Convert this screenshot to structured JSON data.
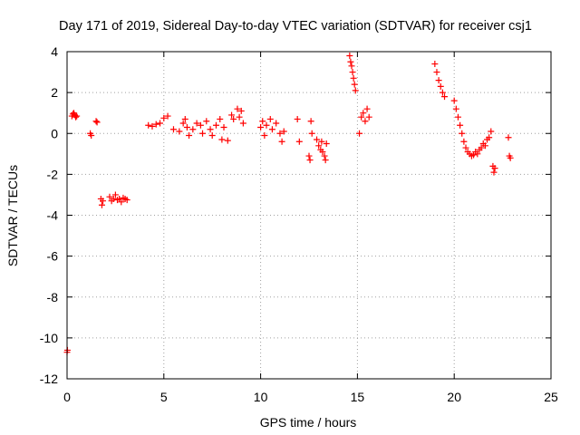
{
  "chart_data": {
    "type": "scatter",
    "title": "Day 171 of 2019, Sidereal Day-to-day VTEC variation (SDTVAR) for receiver csj1",
    "xlabel": "GPS time / hours",
    "ylabel": "SDTVAR / TECUs",
    "xlim": [
      0,
      25
    ],
    "ylim": [
      -12,
      4
    ],
    "xticks": [
      0,
      5,
      10,
      15,
      20,
      25
    ],
    "yticks": [
      4,
      2,
      0,
      -2,
      -4,
      -6,
      -8,
      -10,
      -12
    ],
    "grid": true,
    "marker": "+",
    "color": "#ff0000",
    "series": [
      {
        "name": "SDTVAR",
        "points": [
          [
            0.0,
            -10.7
          ],
          [
            0.02,
            -10.6
          ],
          [
            0.25,
            0.85
          ],
          [
            0.3,
            0.95
          ],
          [
            0.35,
            1.0
          ],
          [
            0.4,
            0.9
          ],
          [
            0.45,
            0.8
          ],
          [
            0.5,
            0.85
          ],
          [
            1.2,
            0.0
          ],
          [
            1.25,
            -0.1
          ],
          [
            1.5,
            0.6
          ],
          [
            1.55,
            0.55
          ],
          [
            1.75,
            -3.2
          ],
          [
            1.8,
            -3.5
          ],
          [
            1.85,
            -3.3
          ],
          [
            2.2,
            -3.1
          ],
          [
            2.3,
            -3.3
          ],
          [
            2.4,
            -3.2
          ],
          [
            2.5,
            -3.0
          ],
          [
            2.6,
            -3.25
          ],
          [
            2.7,
            -3.2
          ],
          [
            2.8,
            -3.35
          ],
          [
            2.9,
            -3.15
          ],
          [
            3.0,
            -3.2
          ],
          [
            3.1,
            -3.25
          ],
          [
            4.2,
            0.4
          ],
          [
            4.4,
            0.35
          ],
          [
            4.6,
            0.45
          ],
          [
            4.8,
            0.5
          ],
          [
            5.0,
            0.75
          ],
          [
            5.2,
            0.85
          ],
          [
            5.5,
            0.2
          ],
          [
            5.8,
            0.1
          ],
          [
            6.0,
            0.5
          ],
          [
            6.1,
            0.7
          ],
          [
            6.2,
            0.3
          ],
          [
            6.3,
            -0.1
          ],
          [
            6.5,
            0.2
          ],
          [
            6.7,
            0.5
          ],
          [
            6.9,
            0.4
          ],
          [
            7.0,
            0.0
          ],
          [
            7.2,
            0.6
          ],
          [
            7.4,
            0.2
          ],
          [
            7.5,
            -0.1
          ],
          [
            7.7,
            0.4
          ],
          [
            7.9,
            0.7
          ],
          [
            8.0,
            -0.3
          ],
          [
            8.1,
            0.3
          ],
          [
            8.3,
            -0.35
          ],
          [
            8.5,
            0.9
          ],
          [
            8.6,
            0.7
          ],
          [
            8.8,
            1.2
          ],
          [
            8.9,
            0.8
          ],
          [
            9.0,
            1.1
          ],
          [
            9.1,
            0.5
          ],
          [
            10.0,
            0.3
          ],
          [
            10.1,
            0.6
          ],
          [
            10.2,
            -0.1
          ],
          [
            10.3,
            0.4
          ],
          [
            10.5,
            0.7
          ],
          [
            10.6,
            0.2
          ],
          [
            10.8,
            0.5
          ],
          [
            11.0,
            0.0
          ],
          [
            11.1,
            -0.4
          ],
          [
            11.2,
            0.1
          ],
          [
            11.9,
            0.7
          ],
          [
            12.0,
            -0.4
          ],
          [
            12.5,
            -1.1
          ],
          [
            12.55,
            -1.3
          ],
          [
            12.6,
            0.6
          ],
          [
            12.65,
            0.0
          ],
          [
            12.9,
            -0.3
          ],
          [
            13.0,
            -0.6
          ],
          [
            13.1,
            -0.8
          ],
          [
            13.15,
            -0.4
          ],
          [
            13.2,
            -0.9
          ],
          [
            13.3,
            -1.1
          ],
          [
            13.35,
            -1.3
          ],
          [
            13.4,
            -0.5
          ],
          [
            14.6,
            3.8
          ],
          [
            14.65,
            3.5
          ],
          [
            14.7,
            3.3
          ],
          [
            14.75,
            3.0
          ],
          [
            14.8,
            2.7
          ],
          [
            14.85,
            2.4
          ],
          [
            14.9,
            2.1
          ],
          [
            15.1,
            0.0
          ],
          [
            15.2,
            0.8
          ],
          [
            15.3,
            1.0
          ],
          [
            15.4,
            0.6
          ],
          [
            15.5,
            1.2
          ],
          [
            15.6,
            0.8
          ],
          [
            19.0,
            3.4
          ],
          [
            19.1,
            3.0
          ],
          [
            19.2,
            2.6
          ],
          [
            19.3,
            2.3
          ],
          [
            19.4,
            2.0
          ],
          [
            19.5,
            1.8
          ],
          [
            20.0,
            1.6
          ],
          [
            20.1,
            1.2
          ],
          [
            20.2,
            0.8
          ],
          [
            20.3,
            0.4
          ],
          [
            20.4,
            0.0
          ],
          [
            20.5,
            -0.4
          ],
          [
            20.6,
            -0.7
          ],
          [
            20.7,
            -0.9
          ],
          [
            20.8,
            -1.0
          ],
          [
            20.9,
            -1.1
          ],
          [
            21.0,
            -1.05
          ],
          [
            21.1,
            -0.9
          ],
          [
            21.2,
            -1.0
          ],
          [
            21.3,
            -0.8
          ],
          [
            21.4,
            -0.7
          ],
          [
            21.5,
            -0.5
          ],
          [
            21.6,
            -0.6
          ],
          [
            21.7,
            -0.3
          ],
          [
            21.8,
            -0.2
          ],
          [
            21.9,
            0.1
          ],
          [
            22.0,
            -1.6
          ],
          [
            22.05,
            -1.9
          ],
          [
            22.1,
            -1.7
          ],
          [
            22.8,
            -0.2
          ],
          [
            22.85,
            -1.1
          ],
          [
            22.9,
            -1.2
          ]
        ]
      }
    ]
  }
}
